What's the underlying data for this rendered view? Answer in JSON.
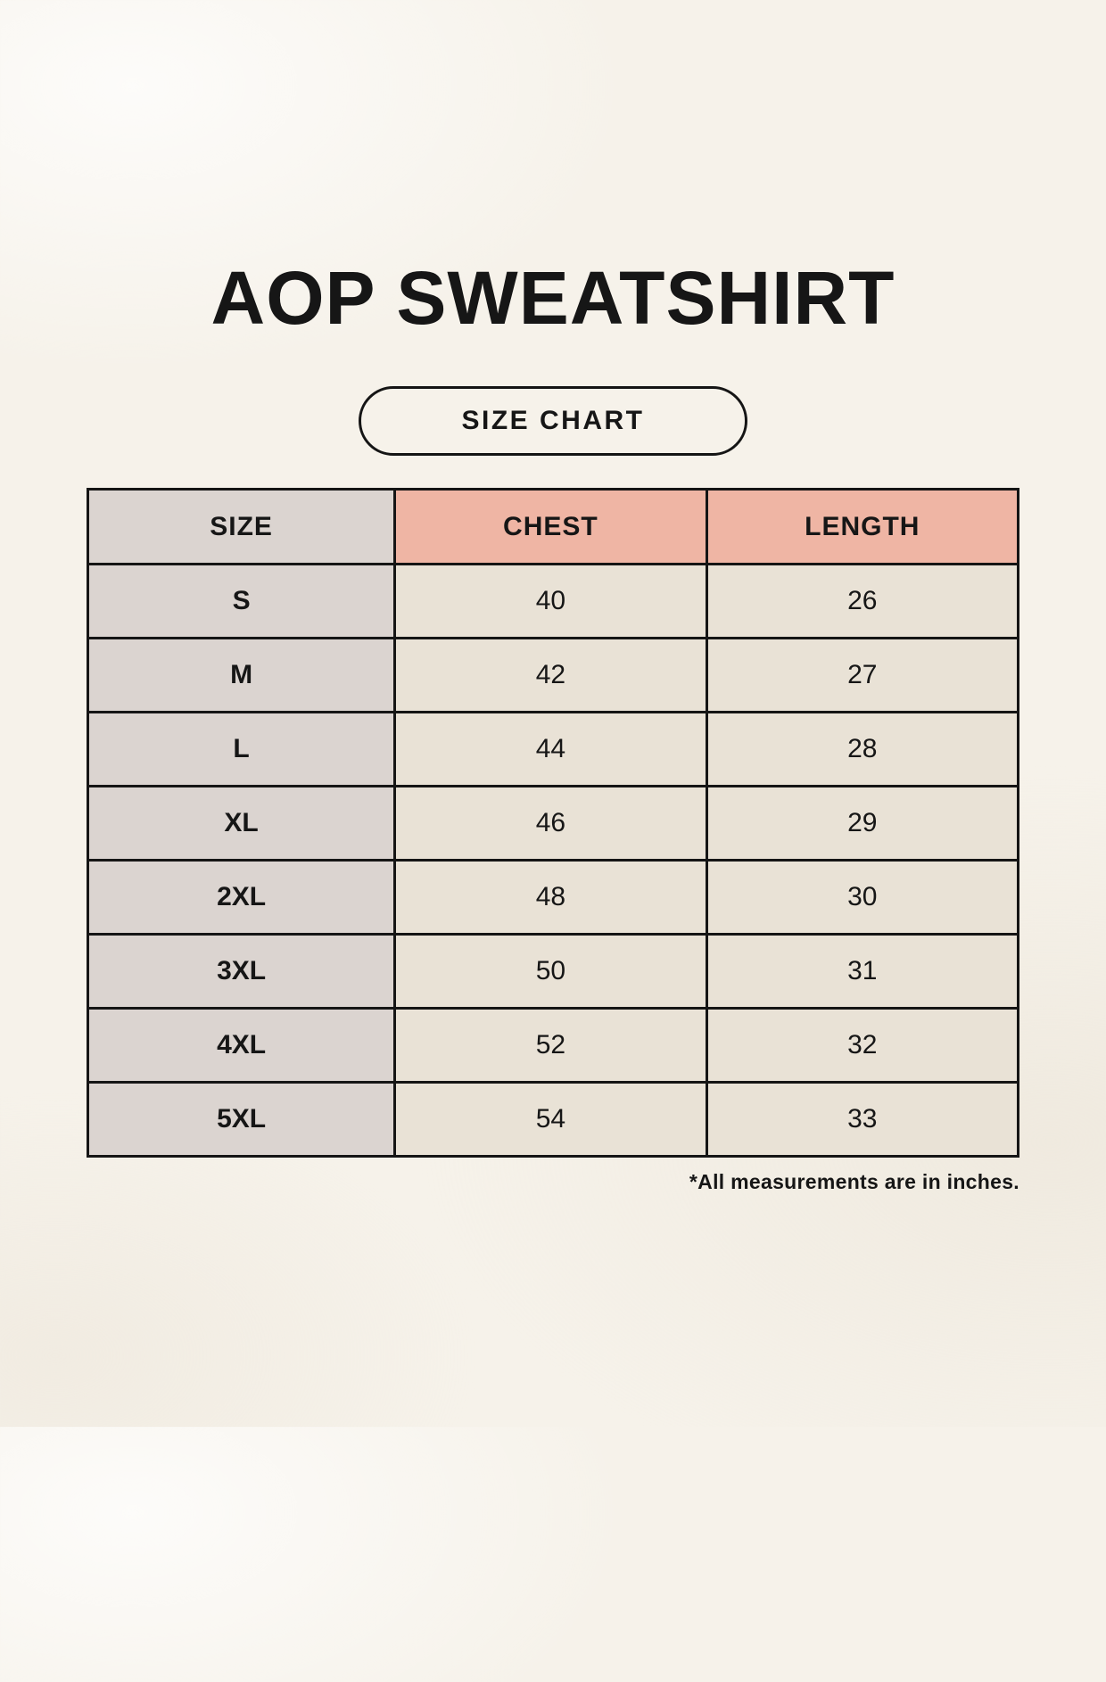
{
  "page": {
    "title": "AOP SWEATSHIRT",
    "badge_label": "SIZE CHART",
    "footnote": "*All measurements are in inches."
  },
  "colors": {
    "background": "#f6f2ea",
    "size_column_bg": "#dbd4d0",
    "accent_header_bg": "#efb5a4",
    "cell_bg": "#e9e2d6",
    "border": "#151515",
    "text": "#161616"
  },
  "chart_data": {
    "type": "table",
    "title": "AOP SWEATSHIRT",
    "columns": [
      "SIZE",
      "CHEST",
      "LENGTH"
    ],
    "rows": [
      [
        "S",
        "40",
        "26"
      ],
      [
        "M",
        "42",
        "27"
      ],
      [
        "L",
        "44",
        "28"
      ],
      [
        "XL",
        "46",
        "29"
      ],
      [
        "2XL",
        "48",
        "30"
      ],
      [
        "3XL",
        "50",
        "31"
      ],
      [
        "4XL",
        "52",
        "32"
      ],
      [
        "5XL",
        "54",
        "33"
      ]
    ],
    "units_note": "*All measurements are in inches."
  }
}
